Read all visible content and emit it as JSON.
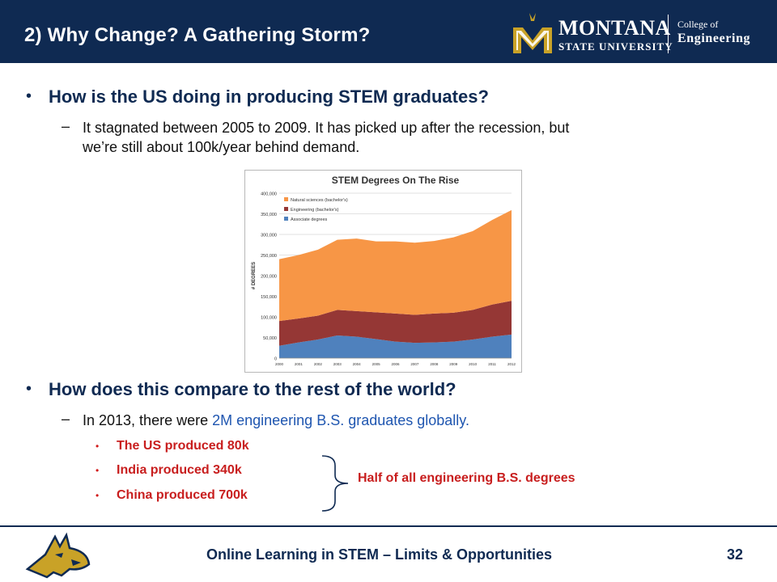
{
  "slide": {
    "title": "2) Why Change? A Gathering Storm?",
    "bullet_1": "How is the US doing in producing STEM graduates?",
    "sub_1_line1": "It stagnated between 2005 to 2009.  It has picked up after the recession, but",
    "sub_1_line2": "we’re still about 100k/year behind demand.",
    "bullet_2": "How does this compare to the rest of the world?",
    "sub_2_prefix": "In 2013, there were ",
    "sub_2_highlight": "2M engineering B.S. graduates globally.",
    "red_items": [
      "The US produced 80k",
      "India produced 340k",
      "China produced 700k"
    ],
    "brace_note": "Half of all engineering B.S. degrees",
    "bullet_char": "•",
    "dash_char": "–"
  },
  "logo": {
    "montana": "MONTANA",
    "state_university": "STATE UNIVERSITY",
    "college_of": "College of",
    "engineering": "Engineering"
  },
  "footer": {
    "text": "Online Learning in STEM – Limits & Opportunities",
    "page": "32"
  },
  "colors": {
    "navy": "#0f2a52",
    "gold": "#c9a227",
    "red": "#c81e1e",
    "link_blue": "#1f56b0",
    "natural": "#f79646",
    "engineering": "#953735",
    "associate": "#4f81bd"
  },
  "chart_data": {
    "type": "area",
    "stacked": true,
    "title": "STEM Degrees On The Rise",
    "ylabel": "# DEGREES",
    "xlabel": "",
    "x": [
      "2000",
      "2001",
      "2002",
      "2003",
      "2004",
      "2005",
      "2006",
      "2007",
      "2008",
      "2009",
      "2010",
      "2011",
      "2012"
    ],
    "ylim": [
      0,
      400000
    ],
    "yticks": [
      "0",
      "50,000",
      "100,000",
      "150,000",
      "200,000",
      "250,000",
      "300,000",
      "350,000",
      "400,000"
    ],
    "legend": "top-left",
    "grid": true,
    "series": [
      {
        "name": "Associate degrees",
        "color": "#4f81bd",
        "values": [
          30000,
          38000,
          45000,
          55000,
          52000,
          46000,
          40000,
          37000,
          38000,
          40000,
          45000,
          52000,
          57000
        ]
      },
      {
        "name": "Engineering (bachelor's)",
        "color": "#953735",
        "values": [
          60000,
          58000,
          58000,
          62000,
          62000,
          65000,
          68000,
          68000,
          70000,
          70000,
          72000,
          78000,
          82000
        ]
      },
      {
        "name": "Natural sciences (bachelor's)",
        "color": "#f79646",
        "values": [
          150000,
          154000,
          160000,
          170000,
          176000,
          172000,
          175000,
          175000,
          176000,
          183000,
          191000,
          205000,
          220000
        ]
      }
    ]
  }
}
